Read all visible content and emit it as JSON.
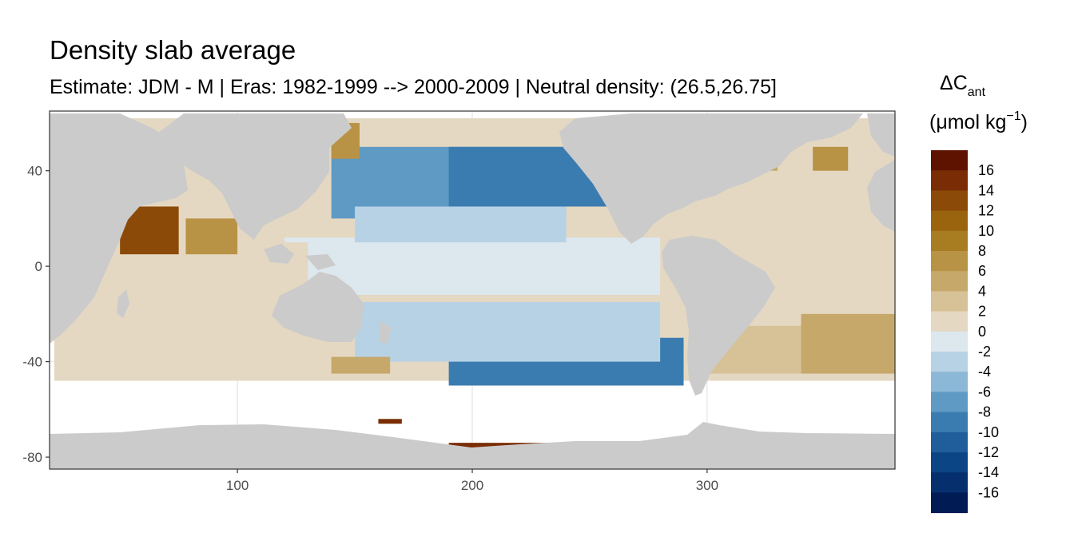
{
  "chart_data": {
    "type": "heatmap",
    "title": "Density slab average",
    "subtitle": "Estimate: JDM - M | Eras: 1982-1999 --> 2000-2009 | Neutral density: (26.5,26.75]",
    "xlabel": "",
    "ylabel": "",
    "xlim": [
      20,
      380
    ],
    "ylim": [
      -85,
      65
    ],
    "x_ticks": [
      "100",
      "200",
      "300"
    ],
    "x_tick_values": [
      100,
      200,
      300
    ],
    "y_ticks": [
      "40",
      "0",
      "-40",
      "-80"
    ],
    "y_tick_values": [
      40,
      0,
      -40,
      -80
    ],
    "grid": true,
    "legend": {
      "title": "ΔC",
      "title_sub": "ant",
      "units_prefix": "(μmol kg",
      "units_sup": "−1",
      "units_suffix": ")",
      "placement": "right",
      "labels": [
        "16",
        "14",
        "12",
        "10",
        "8",
        "6",
        "4",
        "2",
        "0",
        "-2",
        "-4",
        "-6",
        "-8",
        "-10",
        "-12",
        "-14",
        "-16"
      ],
      "colors": [
        "#5e1300",
        "#7a2d04",
        "#8c4a08",
        "#9a640f",
        "#a87d22",
        "#b89245",
        "#c6a86a",
        "#d7c196",
        "#e4d8c2",
        "#dde7ee",
        "#b8d2e5",
        "#8ab8d6",
        "#5e9ac4",
        "#3b7cb0",
        "#1f5e9a",
        "#0c4585",
        "#062f6e",
        "#011b55"
      ]
    },
    "colors": {
      "land": "#cbcbcb",
      "no_data": "#ffffff",
      "panel_border": "#333333",
      "grid": "#ebebeb"
    },
    "regions": [
      {
        "x": [
          22,
          380
        ],
        "y": [
          -48,
          62
        ],
        "value": 1
      },
      {
        "x": [
          120,
          280
        ],
        "y": [
          -12,
          12
        ],
        "value": -1
      },
      {
        "x": [
          40,
          130
        ],
        "y": [
          -45,
          10
        ],
        "value": 2
      },
      {
        "x": [
          50,
          75
        ],
        "y": [
          5,
          25
        ],
        "value": 13
      },
      {
        "x": [
          78,
          100
        ],
        "y": [
          5,
          20
        ],
        "value": 7
      },
      {
        "x": [
          140,
          240
        ],
        "y": [
          20,
          50
        ],
        "value": -6
      },
      {
        "x": [
          190,
          270
        ],
        "y": [
          25,
          50
        ],
        "value": -9
      },
      {
        "x": [
          150,
          240
        ],
        "y": [
          10,
          25
        ],
        "value": -3
      },
      {
        "x": [
          190,
          290
        ],
        "y": [
          -50,
          -30
        ],
        "value": -8
      },
      {
        "x": [
          150,
          280
        ],
        "y": [
          -40,
          -15
        ],
        "value": -2
      },
      {
        "x": [
          340,
          380
        ],
        "y": [
          -45,
          -20
        ],
        "value": 5
      },
      {
        "x": [
          300,
          340
        ],
        "y": [
          -45,
          -25
        ],
        "value": 3
      },
      {
        "x": [
          300,
          330
        ],
        "y": [
          35,
          50
        ],
        "value": 6
      },
      {
        "x": [
          310,
          370
        ],
        "y": [
          10,
          40
        ],
        "value": 1
      },
      {
        "x": [
          280,
          350
        ],
        "y": [
          -15,
          5
        ],
        "value": 2
      },
      {
        "x": [
          140,
          152
        ],
        "y": [
          45,
          60
        ],
        "value": 7
      },
      {
        "x": [
          345,
          360
        ],
        "y": [
          40,
          50
        ],
        "value": 8
      },
      {
        "x": [
          140,
          165
        ],
        "y": [
          -45,
          -38
        ],
        "value": 5
      },
      {
        "x": [
          190,
          260
        ],
        "y": [
          -78,
          -74
        ],
        "value": 16
      },
      {
        "x": [
          160,
          170
        ],
        "y": [
          -66,
          -64
        ],
        "value": 16
      }
    ]
  }
}
